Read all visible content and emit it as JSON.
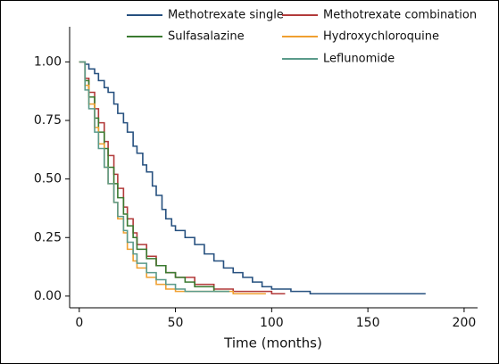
{
  "chart_data": {
    "type": "step",
    "xlabel": "Time (months)",
    "xlim": [
      -5,
      207
    ],
    "ylim": [
      -0.05,
      1.15
    ],
    "xticks": [
      0,
      50,
      100,
      150,
      200
    ],
    "yticks": [
      {
        "value": 0,
        "label": "0.00"
      },
      {
        "value": 0.25,
        "label": "0.25"
      },
      {
        "value": 0.5,
        "label": "0.50"
      },
      {
        "value": 0.75,
        "label": "0.75"
      },
      {
        "value": 1,
        "label": "1.00"
      }
    ],
    "series": [
      {
        "name": "Methotrexate single",
        "color": "#26507f",
        "x": [
          0,
          3,
          5,
          8,
          10,
          13,
          15,
          18,
          20,
          23,
          25,
          28,
          30,
          33,
          35,
          38,
          40,
          43,
          45,
          48,
          50,
          55,
          60,
          65,
          70,
          75,
          80,
          85,
          90,
          95,
          100,
          110,
          120,
          180
        ],
        "values": [
          1,
          0.99,
          0.97,
          0.95,
          0.92,
          0.89,
          0.87,
          0.82,
          0.78,
          0.74,
          0.7,
          0.64,
          0.61,
          0.56,
          0.53,
          0.47,
          0.43,
          0.37,
          0.33,
          0.3,
          0.28,
          0.25,
          0.22,
          0.18,
          0.15,
          0.12,
          0.1,
          0.08,
          0.06,
          0.04,
          0.03,
          0.02,
          0.01,
          0.01
        ]
      },
      {
        "name": "Methotrexate combination",
        "color": "#b23a3a",
        "x": [
          0,
          3,
          5,
          8,
          10,
          13,
          15,
          18,
          20,
          23,
          25,
          28,
          30,
          35,
          40,
          45,
          50,
          60,
          70,
          80,
          100,
          107
        ],
        "values": [
          1,
          0.93,
          0.87,
          0.8,
          0.74,
          0.66,
          0.6,
          0.52,
          0.46,
          0.38,
          0.33,
          0.27,
          0.22,
          0.17,
          0.13,
          0.1,
          0.08,
          0.05,
          0.03,
          0.02,
          0.01,
          0.01
        ]
      },
      {
        "name": "Sulfasalazine",
        "color": "#3a7a30",
        "x": [
          0,
          3,
          5,
          8,
          10,
          13,
          15,
          18,
          20,
          23,
          25,
          28,
          30,
          35,
          40,
          45,
          50,
          55,
          60,
          70,
          78
        ],
        "values": [
          1,
          0.92,
          0.85,
          0.76,
          0.7,
          0.63,
          0.55,
          0.48,
          0.42,
          0.35,
          0.3,
          0.25,
          0.2,
          0.16,
          0.13,
          0.1,
          0.08,
          0.06,
          0.04,
          0.02,
          0.02
        ]
      },
      {
        "name": "Hydroxychloroquine",
        "color": "#f0a030",
        "x": [
          0,
          3,
          5,
          8,
          10,
          13,
          15,
          18,
          20,
          23,
          25,
          28,
          30,
          35,
          40,
          45,
          50,
          60,
          80,
          97
        ],
        "values": [
          1,
          0.9,
          0.82,
          0.72,
          0.65,
          0.55,
          0.48,
          0.4,
          0.33,
          0.27,
          0.2,
          0.15,
          0.12,
          0.08,
          0.05,
          0.03,
          0.02,
          0.02,
          0.01,
          0.01
        ]
      },
      {
        "name": "Leflunomide",
        "color": "#5a9a8a",
        "x": [
          0,
          3,
          5,
          8,
          10,
          13,
          15,
          18,
          20,
          23,
          25,
          28,
          30,
          35,
          40,
          45,
          50,
          55,
          78
        ],
        "values": [
          1,
          0.88,
          0.8,
          0.7,
          0.63,
          0.55,
          0.48,
          0.4,
          0.34,
          0.28,
          0.23,
          0.18,
          0.14,
          0.1,
          0.07,
          0.05,
          0.03,
          0.02,
          0.02
        ]
      }
    ]
  }
}
